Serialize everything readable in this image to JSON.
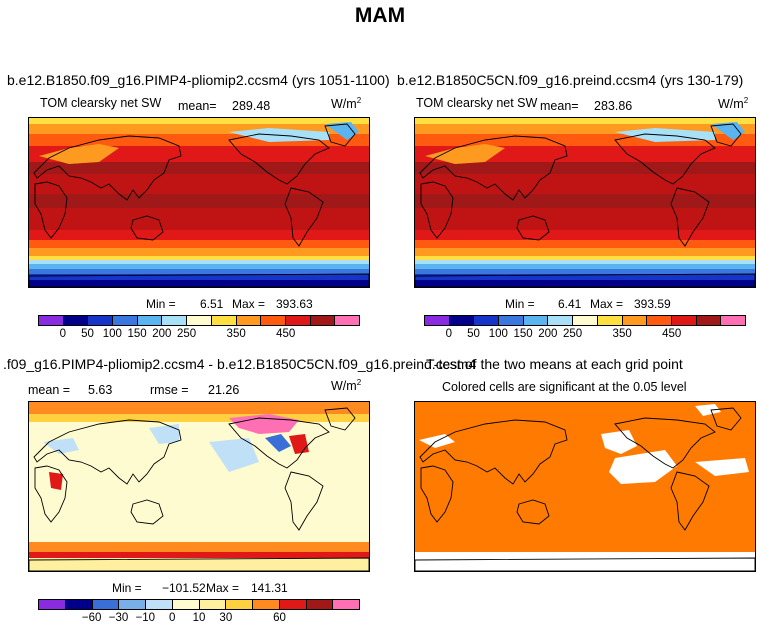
{
  "title": "MAM",
  "colors": {
    "abs_palette": [
      "#8a2be2",
      "#00008b",
      "#1535c8",
      "#3a78e0",
      "#5ab4f0",
      "#a8e0f8",
      "#fffbd0",
      "#ffe040",
      "#ff9a20",
      "#ff5a10",
      "#e01818",
      "#a01818",
      "#ff6fb3"
    ],
    "diff_palette": [
      "#8a2be2",
      "#00008b",
      "#3a6fd8",
      "#7aaee8",
      "#c0e0f8",
      "#fffbd0",
      "#fff0a0",
      "#ffd040",
      "#ff8a20",
      "#e01818",
      "#a01818",
      "#ff6fb3"
    ],
    "ttest_color": "#ff7a00"
  },
  "chart_data": [
    {
      "type": "heatmap",
      "panel": "top-left",
      "title": "b.e12.B1850.f09_g16.PIMP4-pliomip2.ccsm4 (yrs 1051-1100)",
      "variable": "TOM clearsky net SW",
      "stat_label": "mean=",
      "mean": "289.48",
      "units_base": "W/m",
      "units_exp": "2",
      "min_label": "Min =",
      "min": "6.51",
      "max_label": "Max =",
      "max": "393.63",
      "colorbar_ticks": [
        "0",
        "50",
        "100",
        "150",
        "200",
        "250",
        "350",
        "450"
      ],
      "colorbar_levels": [
        0,
        50,
        100,
        150,
        200,
        250,
        350,
        450
      ]
    },
    {
      "type": "heatmap",
      "panel": "top-right",
      "title": "b.e12.B1850C5CN.f09_g16.preind.ccsm4 (yrs 130-179)",
      "variable": "TOM clearsky net SW",
      "stat_label": "mean=",
      "mean": "283.86",
      "units_base": "W/m",
      "units_exp": "2",
      "min_label": "Min =",
      "min": "6.41",
      "max_label": "Max =",
      "max": "393.59",
      "colorbar_ticks": [
        "0",
        "50",
        "100",
        "150",
        "200",
        "250",
        "350",
        "450"
      ],
      "colorbar_levels": [
        0,
        50,
        100,
        150,
        200,
        250,
        350,
        450
      ]
    },
    {
      "type": "heatmap",
      "panel": "bottom-left",
      "title": ".f09_g16.PIMP4-pliomip2.ccsm4 - b.e12.B1850C5CN.f09_g16.preind.ccsm4",
      "mean_label": "mean =",
      "mean": "5.63",
      "rmse_label": "rmse =",
      "rmse": "21.26",
      "units_base": "W/m",
      "units_exp": "2",
      "min_label": "Min =",
      "min": "−101.52",
      "max_label": "Max =",
      "max": "141.31",
      "colorbar_ticks": [
        "−60",
        "−30",
        "−10",
        "0",
        "10",
        "30",
        "60"
      ],
      "colorbar_levels": [
        -60,
        -30,
        -10,
        0,
        10,
        30,
        60
      ]
    },
    {
      "type": "heatmap",
      "panel": "bottom-right",
      "title": "T-test of the two means at each grid point",
      "subtitle": "Colored cells are significant at the 0.05 level"
    }
  ]
}
